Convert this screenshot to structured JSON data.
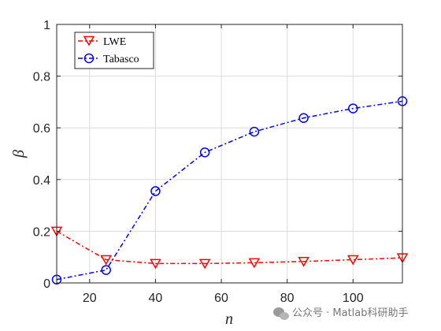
{
  "chart_data": {
    "type": "line",
    "title": "",
    "xlabel": "n",
    "ylabel": "β",
    "xlim": [
      10,
      115
    ],
    "ylim": [
      0,
      1
    ],
    "xticks": [
      20,
      40,
      60,
      80,
      100
    ],
    "xtick_labels": [
      "20",
      "40",
      "60",
      "80",
      "100"
    ],
    "yticks": [
      0,
      0.2,
      0.4,
      0.6,
      0.8,
      1
    ],
    "ytick_labels": [
      "0",
      "0.2",
      "0.4",
      "0.6",
      "0.8",
      "1"
    ],
    "grid": true,
    "legend_position": "top-left",
    "series": [
      {
        "name": "LWE",
        "color": "#ff0000",
        "line_style": "dash-dot",
        "marker": "triangle-down",
        "x": [
          10,
          25,
          40,
          55,
          70,
          85,
          100,
          115
        ],
        "y": [
          0.2,
          0.09,
          0.075,
          0.075,
          0.078,
          0.083,
          0.09,
          0.097
        ]
      },
      {
        "name": "Tabasco",
        "color": "#0000ff",
        "line_style": "dash-dot",
        "marker": "circle",
        "x": [
          10,
          25,
          40,
          55,
          70,
          85,
          100,
          115
        ],
        "y": [
          0.013,
          0.05,
          0.355,
          0.505,
          0.585,
          0.638,
          0.675,
          0.703
        ]
      }
    ]
  },
  "watermark": {
    "text": "公众号 · Matlab科研助手",
    "icon": "wechat-icon"
  }
}
